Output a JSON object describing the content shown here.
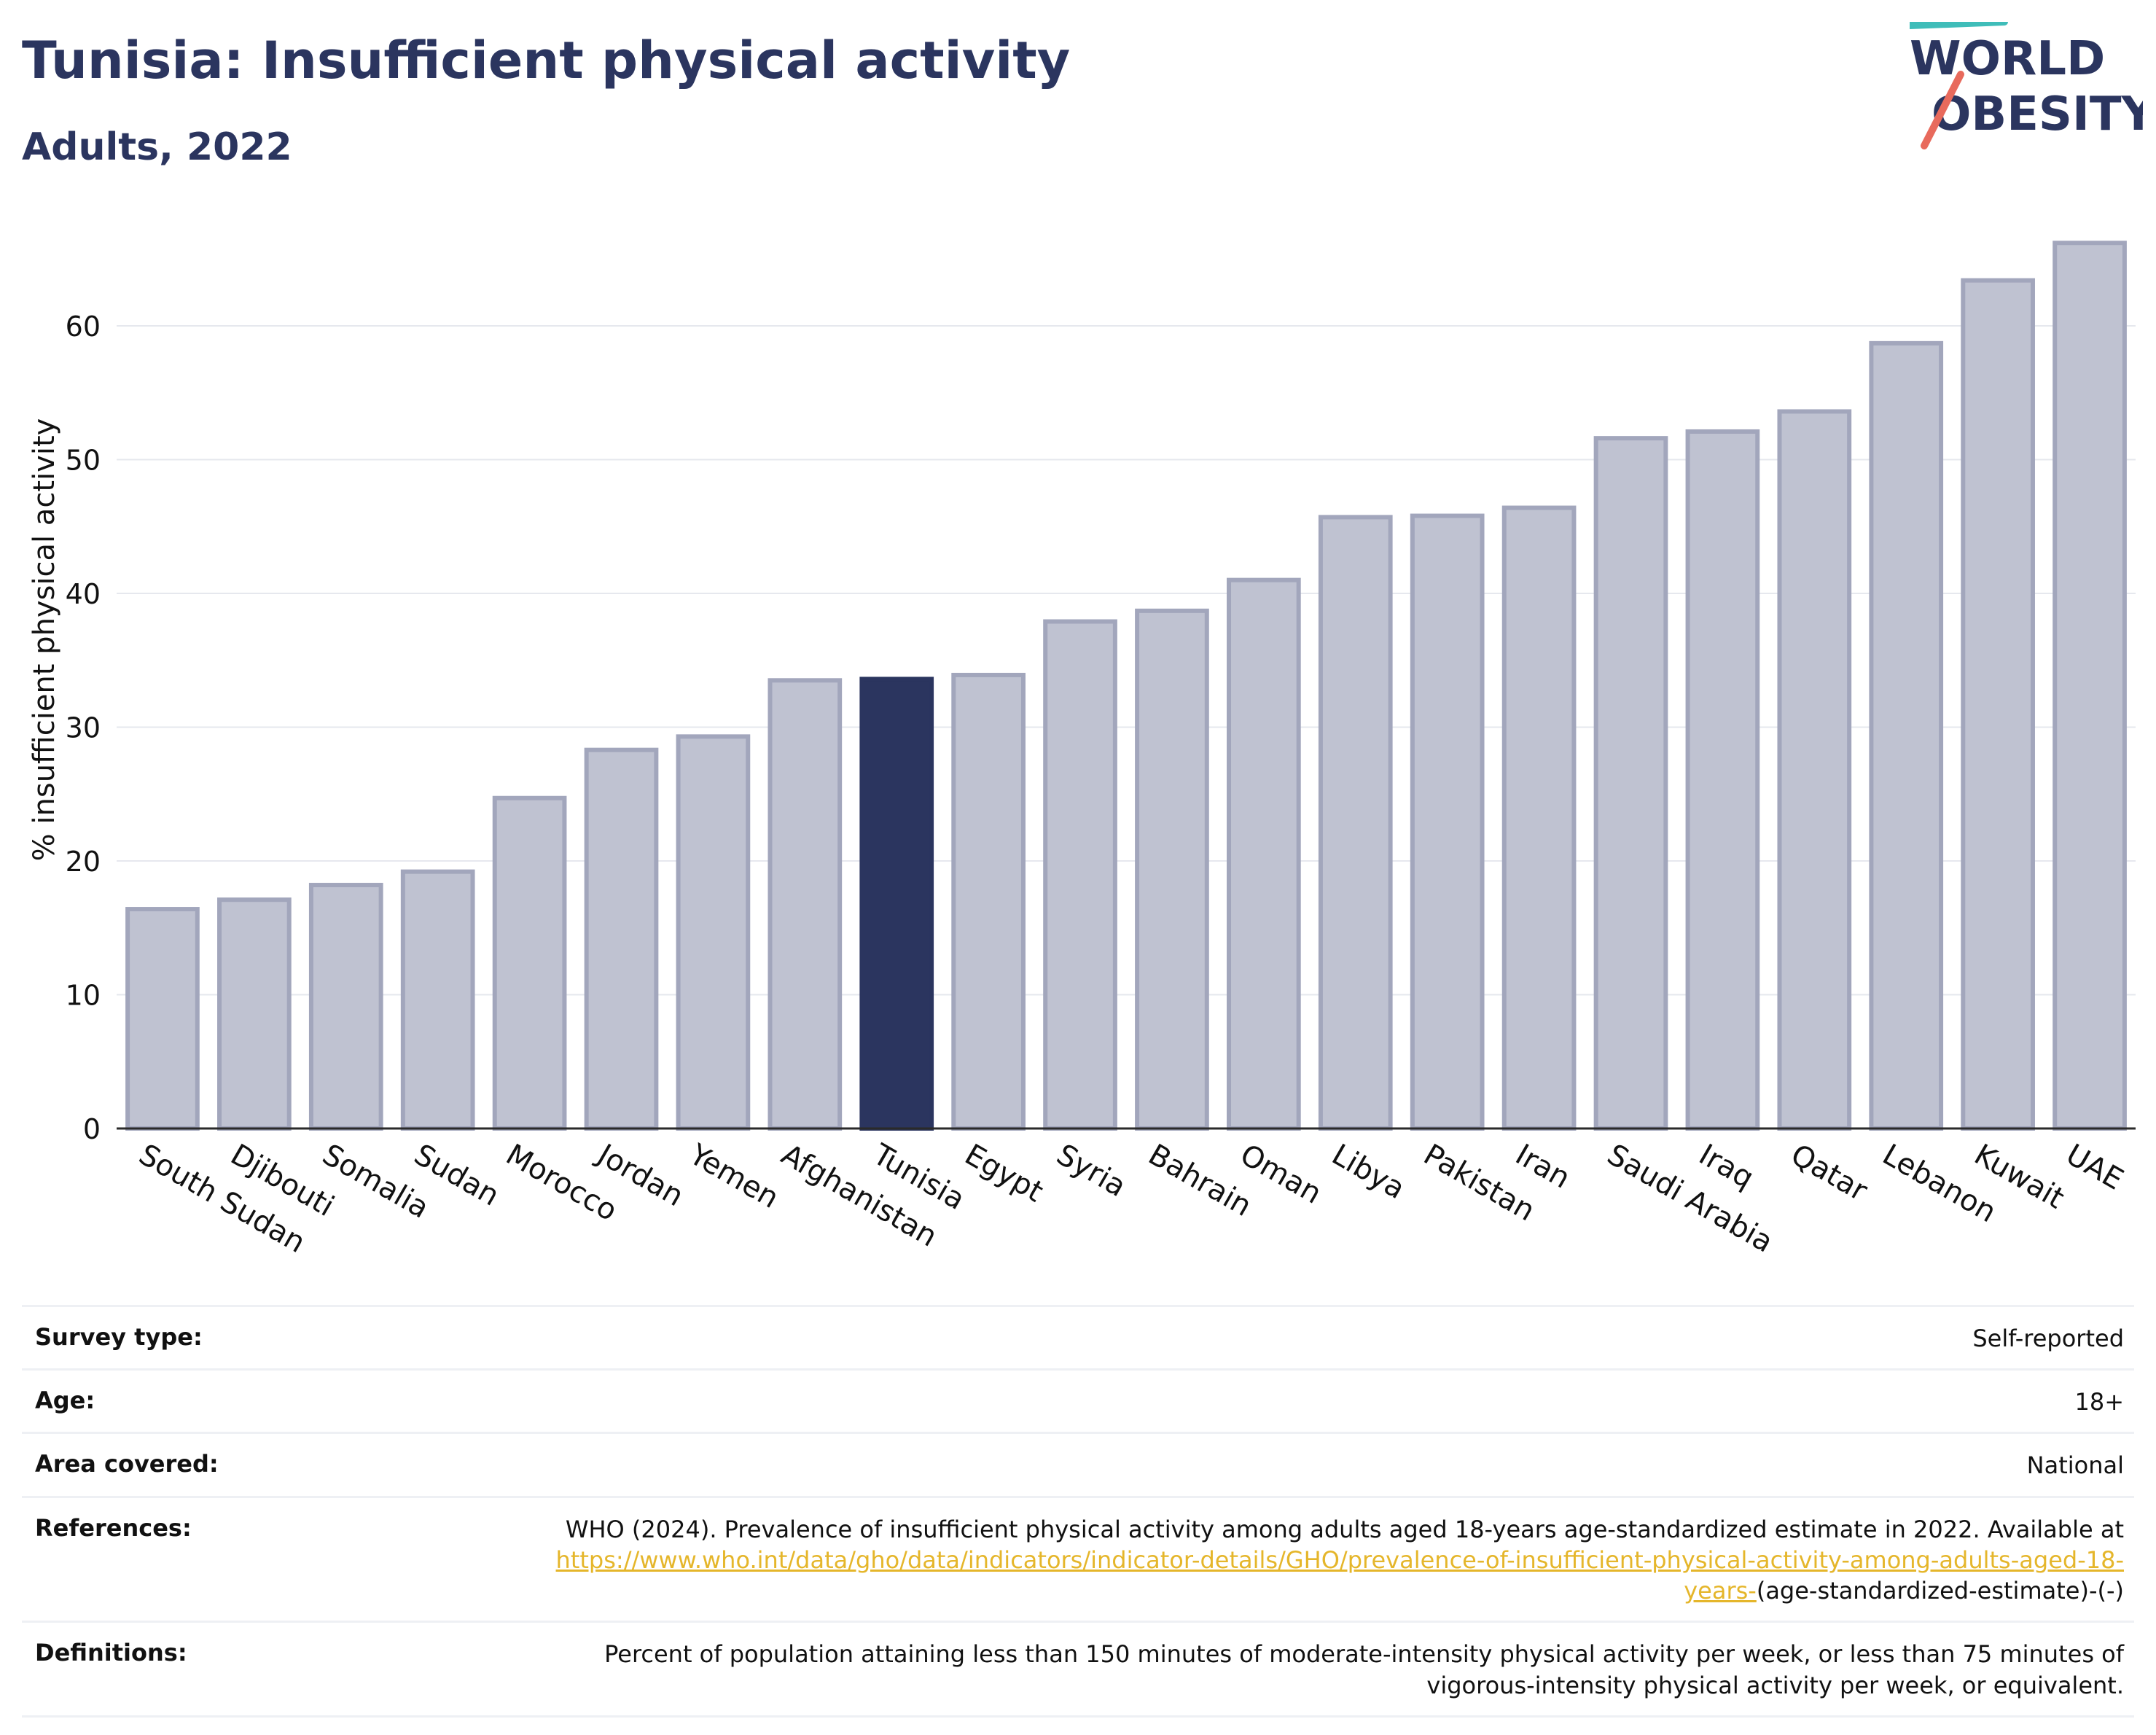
{
  "header": {
    "title": "Tunisia: Insufficient physical activity",
    "subtitle": "Adults, 2022"
  },
  "logo": {
    "line1": "WORLD",
    "line2": "OBESITY",
    "icon": "world-obesity-logo"
  },
  "colors": {
    "bar": "#bfc2d1",
    "bar_border": "#a2a6bc",
    "highlight": "#2b355f",
    "title": "#2b355f",
    "link": "#e5b62b",
    "grid": "#e6e8ee"
  },
  "chart_data": {
    "type": "bar",
    "categories": [
      "South Sudan",
      "Djibouti",
      "Somalia",
      "Sudan",
      "Morocco",
      "Jordan",
      "Yemen",
      "Afghanistan",
      "Tunisia",
      "Egypt",
      "Syria",
      "Bahrain",
      "Oman",
      "Libya",
      "Pakistan",
      "Iran",
      "Saudi Arabia",
      "Iraq",
      "Qatar",
      "Lebanon",
      "Kuwait",
      "UAE"
    ],
    "values": [
      16.4,
      17.1,
      18.2,
      19.2,
      24.7,
      28.3,
      29.3,
      33.5,
      33.6,
      33.9,
      37.9,
      38.7,
      41.0,
      45.7,
      45.8,
      46.4,
      51.6,
      52.1,
      53.6,
      58.7,
      63.4,
      66.2
    ],
    "highlight": "Tunisia",
    "title": "Tunisia: Insufficient physical activity",
    "subtitle": "Adults, 2022",
    "xlabel": "",
    "ylabel": "% insufficient physical activity",
    "ylim": [
      0,
      70
    ],
    "yticks": [
      0,
      10,
      20,
      30,
      40,
      50,
      60
    ],
    "grid": true
  },
  "meta": {
    "survey_type": {
      "label": "Survey type:",
      "value": "Self-reported"
    },
    "age": {
      "label": "Age:",
      "value": "18+"
    },
    "area": {
      "label": "Area covered:",
      "value": "National"
    },
    "references": {
      "label": "References:",
      "text": "WHO (2024). Prevalence of insufficient physical activity among adults aged 18-years age-standardized estimate in 2022. Available at",
      "link": "https://www.who.int/data/gho/data/indicators/indicator-details/GHO/prevalence-of-insufficient-physical-activity-among-adults-aged-18-years-",
      "suffix": "(age-standardized-estimate)-(-)"
    },
    "definitions": {
      "label": "Definitions:",
      "value": "Percent of population attaining less than 150 minutes of moderate-intensity physical activity per week, or less than 75 minutes of vigorous-intensity physical activity per week, or equivalent."
    }
  }
}
